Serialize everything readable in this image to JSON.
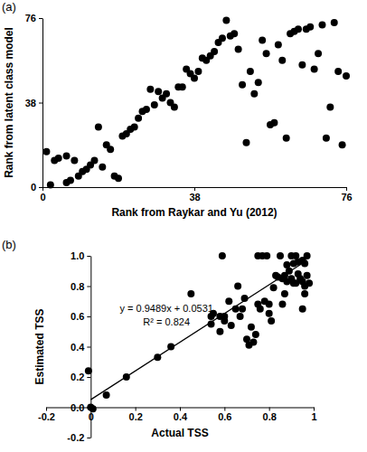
{
  "chart_data": [
    {
      "type": "scatter",
      "title": "(a)",
      "x_label": "Rank from Raykar and Yu (2012)",
      "y_label": "Rank from latent class model",
      "x": [
        1,
        2,
        3,
        4,
        6,
        6,
        7,
        8,
        9,
        10,
        11,
        12,
        13,
        14,
        15,
        16,
        17,
        18,
        19,
        20,
        21,
        22,
        23,
        24,
        25,
        26,
        27,
        28,
        29,
        30,
        31,
        32,
        33,
        34,
        35,
        36,
        37,
        38,
        39,
        40,
        41,
        42,
        43,
        44,
        45,
        46,
        47,
        48,
        49,
        50,
        51,
        52,
        53,
        54,
        55,
        56,
        57,
        58,
        59,
        60,
        61,
        62,
        63,
        64,
        65,
        66,
        67,
        68,
        69,
        70,
        71,
        72,
        73,
        74,
        75,
        76
      ],
      "values": [
        16,
        1,
        12,
        13,
        2,
        14,
        3,
        12,
        5,
        7,
        8,
        10,
        12,
        27,
        9,
        19,
        17,
        5,
        4,
        23,
        24,
        26,
        27,
        31,
        34,
        35,
        44,
        37,
        43,
        40,
        42,
        38,
        36,
        45,
        45,
        53,
        51,
        49,
        52,
        58,
        57,
        59,
        61,
        65,
        67,
        75,
        68,
        69,
        62,
        46,
        20,
        52,
        42,
        47,
        66,
        60,
        28,
        29,
        64,
        57,
        22,
        69,
        70,
        71,
        55,
        71,
        72,
        53,
        60,
        73,
        22,
        36,
        74,
        52,
        19,
        50
      ],
      "color": "#000000",
      "marker": "circle",
      "xlim": [
        0,
        76
      ],
      "xticks": [
        0,
        38,
        76
      ],
      "ylim": [
        0,
        76
      ],
      "yticks": [
        0,
        38,
        76
      ]
    },
    {
      "type": "scatter",
      "title": "(b)",
      "x_label": "Actual TSS",
      "y_label": "Estimated TSS",
      "annotations": [
        "y = 0.9489x + 0.0531",
        "R² = 0.824"
      ],
      "series": [
        {
          "type": "scatter",
          "color": "#000000",
          "marker": "circle",
          "x": [
            -0.01,
            0,
            0.01,
            0.07,
            0.16,
            0.3,
            0.36,
            0.45,
            0.54,
            0.54,
            0.55,
            0.58,
            0.58,
            0.59,
            0.6,
            0.62,
            0.63,
            0.65,
            0.66,
            0.67,
            0.68,
            0.69,
            0.7,
            0.71,
            0.72,
            0.73,
            0.74,
            0.75,
            0.75,
            0.76,
            0.77,
            0.78,
            0.79,
            0.8,
            0.8,
            0.81,
            0.82,
            0.83,
            0.84,
            0.85,
            0.86,
            0.86,
            0.87,
            0.87,
            0.88,
            0.88,
            0.89,
            0.9,
            0.9,
            0.91,
            0.91,
            0.92,
            0.92,
            0.93,
            0.93,
            0.94,
            0.95,
            0.95,
            0.96,
            0.96,
            0.97,
            0.97,
            0.98,
            0.96,
            0.95,
            0.6
          ],
          "values": [
            0.24,
            0,
            -0.01,
            0.08,
            0.2,
            0.33,
            0.4,
            0.75,
            0.6,
            0.55,
            0.62,
            0.6,
            0.5,
            1.0,
            0.57,
            0.7,
            0.54,
            0.65,
            0.8,
            0.6,
            0.65,
            0.72,
            0.45,
            0.41,
            0.53,
            0.43,
            0.48,
            0.68,
            1.0,
            0.65,
            1.0,
            0.7,
            1.0,
            0.68,
            0.62,
            0.57,
            0.79,
            0.87,
            0.86,
            1.0,
            0.85,
            0.68,
            0.87,
            0.75,
            0.83,
            0.94,
            0.9,
            0.85,
            1.0,
            0.82,
            0.95,
            1.0,
            0.82,
            0.88,
            0.96,
            0.85,
            0.97,
            0.83,
            0.95,
            0.8,
            1.0,
            0.87,
            0.82,
            0.75,
            0.65,
            0.6
          ]
        },
        {
          "type": "line",
          "color": "#000000",
          "line_style": "solid",
          "x": [
            0,
            0.97
          ],
          "values": [
            0.05,
            0.97
          ]
        }
      ],
      "xlim": [
        -0.2,
        1.0
      ],
      "xticks": [
        -0.2,
        0,
        0.2,
        0.4,
        0.6,
        0.8,
        1
      ],
      "ylim": [
        -0.2,
        1.0
      ],
      "yticks": [
        -0.2,
        {
          "value": 0,
          "label": "0.0"
        },
        0.2,
        0.4,
        0.6,
        0.8,
        {
          "value": 1,
          "label": "1.0"
        }
      ]
    }
  ]
}
